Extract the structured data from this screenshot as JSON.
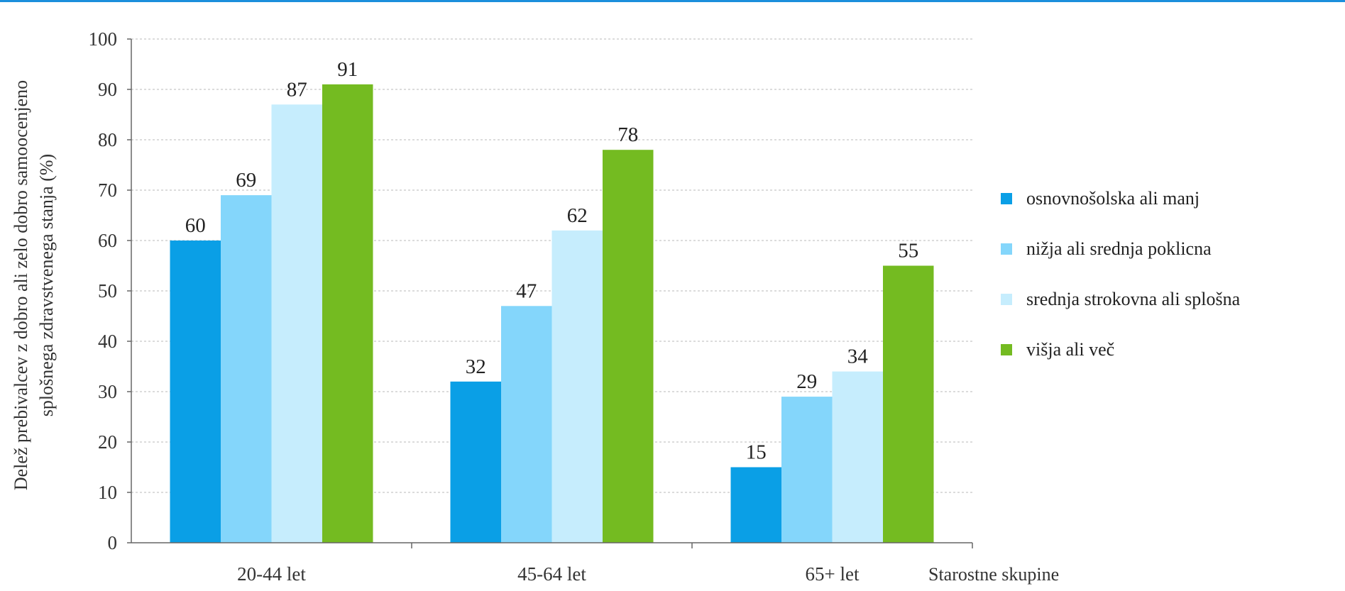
{
  "chart_data": {
    "type": "bar",
    "title": "",
    "ylabel_lines": [
      "Delež prebivalcev z dobro ali zelo dobro samoocenjeno",
      "splošnega zdravstvenega stanja (%)"
    ],
    "xlabel": "Starostne skupine",
    "categories": [
      "20-44 let",
      "45-64 let",
      "65+ let"
    ],
    "series": [
      {
        "name": "osnovnošolska ali manj",
        "values": [
          60,
          32,
          15
        ],
        "color": "#0a9fe6"
      },
      {
        "name": "nižja ali srednja poklicna",
        "values": [
          69,
          47,
          29
        ],
        "color": "#84d6fb"
      },
      {
        "name": "srednja strokovna ali splošna",
        "values": [
          87,
          62,
          34
        ],
        "color": "#c6edfd"
      },
      {
        "name": "višja ali več",
        "values": [
          91,
          78,
          55
        ],
        "color": "#74bb21"
      }
    ],
    "ylim": [
      0,
      100
    ],
    "yticks": [
      0,
      10,
      20,
      30,
      40,
      50,
      60,
      70,
      80,
      90,
      100
    ],
    "grid": true,
    "legend_position": "right"
  }
}
